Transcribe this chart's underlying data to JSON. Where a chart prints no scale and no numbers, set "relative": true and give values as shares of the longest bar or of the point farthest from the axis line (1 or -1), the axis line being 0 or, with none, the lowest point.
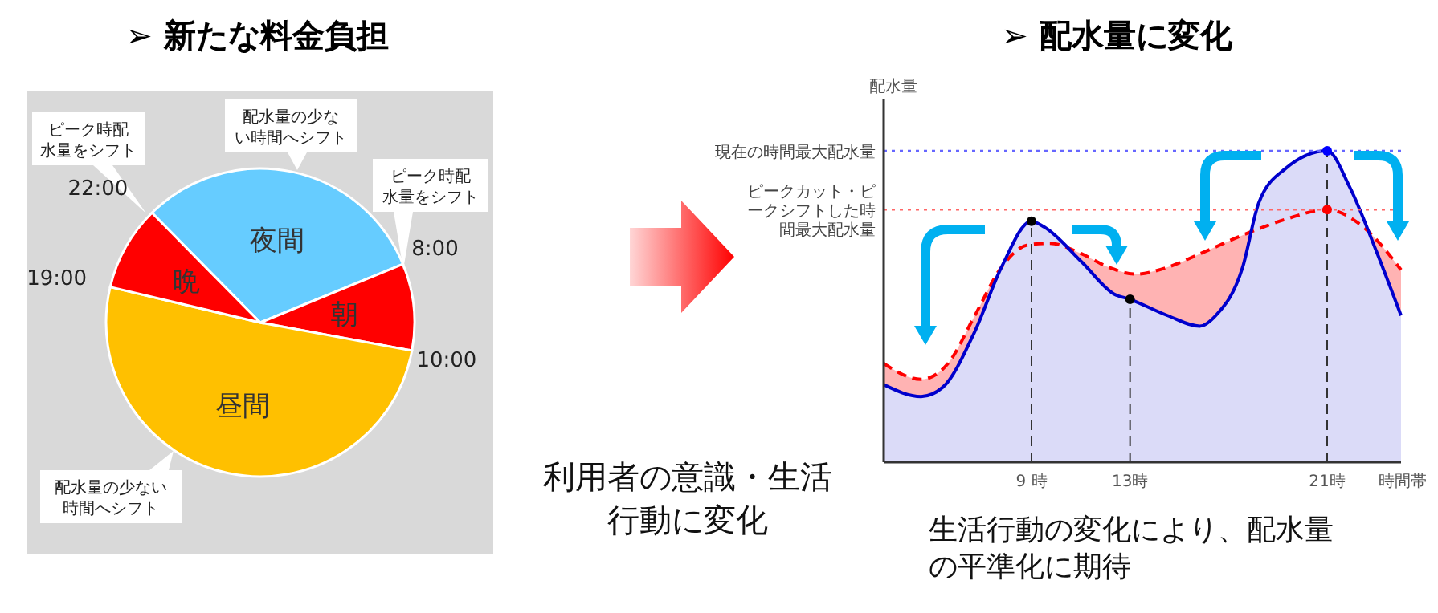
{
  "chart_data": [
    {
      "type": "pie",
      "title": "➢ 新たな料金負担",
      "categories": [
        "夜間",
        "朝",
        "昼間",
        "晩"
      ],
      "values": [
        31.2,
        9.1,
        50.8,
        8.9
      ],
      "colors": [
        "#66ccff",
        "#ff0000",
        "#ffc000",
        "#ff0000"
      ],
      "annotations": [
        "22:00",
        "8:00",
        "10:00",
        "19:00",
        "ピーク時配水量をシフト",
        "配水量の少ない時間へシフト",
        "ピーク時配水量をシフト",
        "配水量の少ない時間へシフト"
      ]
    },
    {
      "type": "line",
      "title": "➢ 配水量に変化",
      "xlabel": "時間帯",
      "ylabel": "配水量",
      "relative": true,
      "xlim": [
        3,
        24
      ],
      "xticks": [
        {
          "value": 9,
          "label": "9 時"
        },
        {
          "value": 13,
          "label": "13時"
        },
        {
          "value": 21,
          "label": "21時"
        }
      ],
      "series": [
        {
          "type": "area",
          "color": "#ff0000",
          "line_style": "dashed",
          "x": [
            3,
            4.52,
            5.61,
            6.7,
            7.78,
            8.87,
            9.74,
            11.04,
            12.13,
            13.22,
            14.52,
            15.83,
            17.57,
            19.31,
            21,
            22.35,
            24
          ],
          "values": [
            0.317,
            0.266,
            0.317,
            0.471,
            0.626,
            0.698,
            0.703,
            0.669,
            0.626,
            0.604,
            0.626,
            0.669,
            0.729,
            0.78,
            0.811,
            0.763,
            0.618
          ]
        },
        {
          "type": "area",
          "color": "#0000cc",
          "x": [
            3,
            4.52,
            5.39,
            6.7,
            7.78,
            9,
            9.52,
            11.04,
            12.35,
            13,
            14.52,
            15.83,
            16.48,
            17.57,
            18.22,
            19.31,
            21,
            21.92,
            23,
            24
          ],
          "values": [
            0.249,
            0.211,
            0.24,
            0.42,
            0.626,
            0.774,
            0.755,
            0.643,
            0.54,
            0.523,
            0.471,
            0.437,
            0.471,
            0.626,
            0.832,
            0.943,
            1,
            0.883,
            0.677,
            0.471
          ]
        },
        {
          "type": "scatter",
          "marker": "circle",
          "x": [
            9,
            13,
            21,
            21
          ],
          "values": [
            0.774,
            0.523,
            1,
            0.811
          ],
          "colors": [
            "#000000",
            "#000000",
            "#0000ff",
            "#ff0000"
          ]
        }
      ],
      "ref_lines": [
        {
          "axis": "y",
          "value": 1,
          "label": "現在の時間最大配水量",
          "color": "#6666ff",
          "line_style": "dotted"
        },
        {
          "axis": "y",
          "value": 0.811,
          "label": "ピークカット・ピークシフトした時間最大配水量",
          "color": "#ff6666",
          "line_style": "dotted"
        },
        {
          "axis": "x",
          "value": 9,
          "color": "#333333",
          "line_style": "dashed"
        },
        {
          "axis": "x",
          "value": 13,
          "color": "#333333",
          "line_style": "dashed"
        },
        {
          "axis": "x",
          "value": 21,
          "color": "#333333",
          "line_style": "dashed"
        }
      ],
      "annotations": [
        "利用者の意識・生活行動に変化",
        "生活行動の変化により、配水量の平準化に期待"
      ]
    }
  ]
}
